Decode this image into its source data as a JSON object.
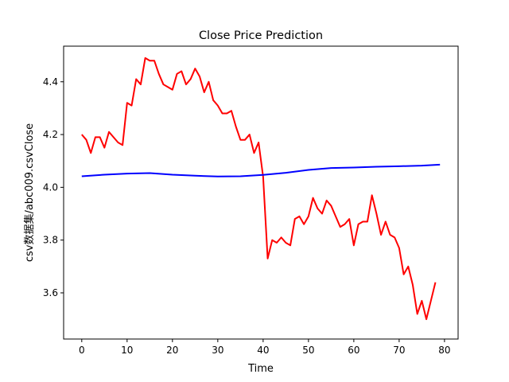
{
  "chart_data": {
    "type": "line",
    "title": "Close Price Prediction",
    "xlabel": "Time",
    "ylabel": "csv数据集/abc009.csvClose",
    "xlim": [
      -4,
      83
    ],
    "ylim": [
      3.425,
      4.535
    ],
    "xticks": [
      0,
      10,
      20,
      30,
      40,
      50,
      60,
      70,
      80
    ],
    "yticks": [
      3.6,
      3.8,
      4.0,
      4.2,
      4.4
    ],
    "ytick_labels": [
      "3.6",
      "3.8",
      "4.0",
      "4.2",
      "4.4"
    ],
    "grid": false,
    "series": [
      {
        "color": "#ff0000",
        "x": [
          0,
          1,
          2,
          3,
          4,
          5,
          6,
          7,
          8,
          9,
          10,
          11,
          12,
          13,
          14,
          15,
          16,
          17,
          18,
          19,
          20,
          21,
          22,
          23,
          24,
          25,
          26,
          27,
          28,
          29,
          30,
          31,
          32,
          33,
          34,
          35,
          36,
          37,
          38,
          39,
          40,
          41,
          42,
          43,
          44,
          45,
          46,
          47,
          48,
          49,
          50,
          51,
          52,
          53,
          54,
          55,
          56,
          57,
          58,
          59,
          60,
          61,
          62,
          63,
          64,
          65,
          66,
          67,
          68,
          69,
          70,
          71,
          72,
          73,
          74,
          75,
          76,
          77,
          78
        ],
        "y": [
          4.2,
          4.18,
          4.13,
          4.19,
          4.19,
          4.15,
          4.21,
          4.19,
          4.17,
          4.16,
          4.32,
          4.31,
          4.41,
          4.39,
          4.49,
          4.48,
          4.48,
          4.43,
          4.39,
          4.38,
          4.37,
          4.43,
          4.44,
          4.39,
          4.41,
          4.45,
          4.42,
          4.36,
          4.4,
          4.33,
          4.31,
          4.28,
          4.28,
          4.29,
          4.23,
          4.18,
          4.18,
          4.2,
          4.13,
          4.17,
          4.04,
          3.73,
          3.8,
          3.79,
          3.81,
          3.79,
          3.78,
          3.88,
          3.89,
          3.86,
          3.89,
          3.96,
          3.92,
          3.9,
          3.95,
          3.93,
          3.89,
          3.85,
          3.86,
          3.88,
          3.78,
          3.86,
          3.87,
          3.87,
          3.97,
          3.9,
          3.82,
          3.87,
          3.82,
          3.81,
          3.77,
          3.67,
          3.7,
          3.63,
          3.52,
          3.57,
          3.5,
          3.57,
          3.64
        ]
      },
      {
        "color": "#0000ff",
        "x": [
          0,
          5,
          10,
          15,
          20,
          25,
          30,
          35,
          40,
          45,
          50,
          55,
          60,
          65,
          70,
          75,
          79
        ],
        "y": [
          4.042,
          4.048,
          4.052,
          4.054,
          4.048,
          4.044,
          4.041,
          4.042,
          4.047,
          4.055,
          4.066,
          4.073,
          4.075,
          4.078,
          4.08,
          4.082,
          4.086
        ]
      }
    ]
  }
}
